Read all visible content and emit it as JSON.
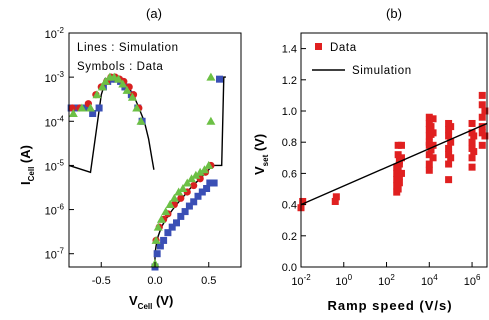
{
  "chart_data": [
    {
      "panel": "(a)",
      "type": "scatter",
      "y_scale": "log",
      "xlim": [
        -0.8,
        0.8
      ],
      "ylim": [
        5e-08,
        0.01
      ],
      "x_ticks": [
        -0.5,
        0.0,
        0.5
      ],
      "x_tick_labels": [
        "-0.5",
        "0.0",
        "0.5"
      ],
      "y_ticks": [
        1e-07,
        1e-06,
        1e-05,
        0.0001,
        0.001,
        0.01
      ],
      "y_tick_labels": [
        {
          "base": "10",
          "exp": "-7"
        },
        {
          "base": "10",
          "exp": "-6"
        },
        {
          "base": "10",
          "exp": "-5"
        },
        {
          "base": "10",
          "exp": "-4"
        },
        {
          "base": "10",
          "exp": "-3"
        },
        {
          "base": "10",
          "exp": "-2"
        }
      ],
      "xlabel": {
        "main": "V",
        "sub": "Cell",
        "unit": " (V)"
      },
      "ylabel": {
        "main": "I",
        "sub": "Cell",
        "unit": " (A)"
      },
      "annotations": [
        "Lines : Simulation",
        "Symbols : Data"
      ],
      "grid": false,
      "series": [
        {
          "style": "line",
          "x": [
            -0.8,
            -0.6,
            -0.5,
            -0.46,
            -0.42,
            -0.38,
            -0.35,
            -0.3,
            -0.25,
            -0.2,
            -0.15,
            -0.1,
            -0.06,
            -0.03,
            -0.01
          ],
          "y": [
            1e-05,
            7e-06,
            0.0004,
            0.0008,
            0.001,
            0.001,
            0.0009,
            0.0008,
            0.0006,
            0.0004,
            0.0002,
            0.0001,
            4e-05,
            1.5e-05,
            8e-06
          ]
        },
        {
          "style": "line",
          "x": [
            0.0,
            0.0,
            0.01,
            0.03,
            0.06,
            0.1,
            0.15,
            0.2,
            0.25,
            0.3,
            0.35,
            0.4,
            0.45,
            0.5,
            0.53
          ],
          "y": [
            6e-08,
            1e-07,
            1.5e-07,
            2.5e-07,
            4e-07,
            6e-07,
            9e-07,
            1.3e-06,
            1.8e-06,
            2.5e-06,
            3.5e-06,
            4.5e-06,
            6e-06,
            8e-06,
            1e-05
          ]
        },
        {
          "style": "line",
          "x": [
            0.53,
            0.62,
            0.64,
            0.66
          ],
          "y": [
            1e-05,
            1e-05,
            0.001,
            0.001
          ]
        },
        {
          "marker": "square",
          "color": "#3a4fb5",
          "x": [
            -0.78,
            -0.72,
            -0.64,
            -0.58,
            -0.52,
            -0.48,
            -0.44,
            -0.4,
            -0.36,
            -0.32,
            -0.28,
            -0.22,
            -0.16,
            -0.12,
            0.0,
            0.02,
            0.05,
            0.08,
            0.12,
            0.16,
            0.2,
            0.24,
            0.28,
            0.32,
            0.36,
            0.4,
            0.44,
            0.48,
            0.51,
            0.55,
            0.6
          ],
          "y": [
            0.0002,
            0.0002,
            0.0002,
            0.00015,
            0.0002,
            0.0006,
            0.0008,
            0.0009,
            0.0009,
            0.0008,
            0.0006,
            0.0004,
            0.0002,
            0.0001,
            5e-08,
            1e-07,
            1.5e-07,
            2e-07,
            3e-07,
            4e-07,
            5e-07,
            7e-07,
            9e-07,
            1.2e-06,
            1.5e-06,
            2e-06,
            2.5e-06,
            3e-06,
            4e-06,
            4e-06,
            0.0009
          ]
        },
        {
          "marker": "circle",
          "color": "#d82020",
          "x": [
            -0.77,
            -0.7,
            -0.62,
            -0.55,
            -0.5,
            -0.45,
            -0.41,
            -0.37,
            -0.33,
            -0.29,
            -0.24,
            -0.2,
            -0.15,
            0.01,
            0.04,
            0.08,
            0.12,
            0.18,
            0.24,
            0.3,
            0.36,
            0.42,
            0.47,
            0.52
          ],
          "y": [
            0.0002,
            0.0002,
            0.00025,
            0.0004,
            0.0006,
            0.0008,
            0.001,
            0.001,
            0.0009,
            0.0008,
            0.0006,
            0.0004,
            0.0002,
            2e-07,
            4e-07,
            6e-07,
            8e-07,
            1.3e-06,
            1.8e-06,
            2.5e-06,
            3.5e-06,
            5e-06,
            7e-06,
            1e-05
          ]
        },
        {
          "marker": "triangle",
          "color": "#6cc045",
          "x": [
            -0.76,
            -0.68,
            -0.6,
            -0.54,
            -0.49,
            -0.46,
            -0.42,
            -0.38,
            -0.34,
            -0.3,
            -0.26,
            -0.21,
            -0.17,
            -0.13,
            0.0,
            0.01,
            0.03,
            0.06,
            0.1,
            0.14,
            0.18,
            0.22,
            0.26,
            0.3,
            0.34,
            0.38,
            0.42,
            0.46,
            0.5,
            0.52,
            0.52
          ],
          "y": [
            0.00015,
            0.0002,
            0.0002,
            0.0004,
            0.0006,
            0.0008,
            0.001,
            0.001,
            0.0009,
            0.0007,
            0.0005,
            0.00035,
            0.0002,
            0.0001,
            6e-08,
            2e-07,
            4e-07,
            6e-07,
            9e-07,
            1.3e-06,
            1.8e-06,
            2.5e-06,
            3e-06,
            4e-06,
            5e-06,
            6e-06,
            7e-06,
            8e-06,
            1e-05,
            0.001,
            0.0001
          ]
        }
      ]
    },
    {
      "panel": "(b)",
      "type": "scatter",
      "x_scale": "log",
      "xlim": [
        0.01,
        5000000.0
      ],
      "ylim": [
        0.0,
        1.5
      ],
      "x_ticks": [
        0.01,
        1,
        100,
        10000,
        1000000
      ],
      "x_tick_labels": [
        {
          "base": "10",
          "exp": "-2"
        },
        {
          "base": "10",
          "exp": "0"
        },
        {
          "base": "10",
          "exp": "2"
        },
        {
          "base": "10",
          "exp": "4"
        },
        {
          "base": "10",
          "exp": "6"
        }
      ],
      "y_ticks": [
        0.0,
        0.2,
        0.4,
        0.6,
        0.8,
        1.0,
        1.2,
        1.4
      ],
      "y_tick_labels": [
        "0.0",
        "0.2",
        "0.4",
        "0.6",
        "0.8",
        "1.0",
        "1.2",
        "1.4"
      ],
      "xlabel": "Ramp   speed (V/s)",
      "ylabel": {
        "main": "V",
        "sub": "set",
        "unit": " (V)"
      },
      "legend": {
        "position": "top-left",
        "entries": [
          {
            "label": "Data",
            "marker": "square",
            "color": "#e02020"
          },
          {
            "label": "Simulation",
            "marker": "line",
            "color": "#000000"
          }
        ]
      },
      "grid": false,
      "series": [
        {
          "name": "Data",
          "marker": "square",
          "color": "#e02020",
          "x": [
            0.01,
            0.012,
            0.4,
            0.45,
            300,
            300,
            300,
            300,
            300,
            350,
            350,
            350,
            350,
            400,
            400,
            400,
            400,
            500,
            500,
            500,
            10000,
            10000,
            10000,
            10000,
            10000,
            10000,
            10000,
            10000,
            10000,
            12000,
            12000,
            12000,
            15000,
            15000,
            15000,
            15000,
            80000,
            80000,
            80000,
            80000,
            80000,
            80000,
            80000,
            100000,
            100000,
            100000,
            1000000,
            1000000,
            1000000,
            1000000,
            1000000,
            1000000,
            1200000,
            1200000,
            3000000,
            3000000,
            3000000,
            3000000,
            3000000,
            3000000,
            4000000,
            4000000
          ],
          "y": [
            0.38,
            0.42,
            0.42,
            0.45,
            0.48,
            0.52,
            0.56,
            0.6,
            0.64,
            0.5,
            0.62,
            0.72,
            0.78,
            0.54,
            0.58,
            0.66,
            0.68,
            0.6,
            0.7,
            0.78,
            0.62,
            0.66,
            0.72,
            0.78,
            0.8,
            0.84,
            0.88,
            0.92,
            0.96,
            0.75,
            0.85,
            0.9,
            0.7,
            0.78,
            0.86,
            0.95,
            0.56,
            0.66,
            0.72,
            0.76,
            0.84,
            0.88,
            0.92,
            0.7,
            0.8,
            0.9,
            0.64,
            0.7,
            0.76,
            0.8,
            0.86,
            0.92,
            0.74,
            0.84,
            0.78,
            0.86,
            0.9,
            0.96,
            1.04,
            1.1,
            0.84,
            1.0
          ]
        },
        {
          "name": "Simulation",
          "style": "line",
          "x": [
            0.01,
            5000000
          ],
          "y": [
            0.4,
            0.92
          ]
        }
      ]
    }
  ]
}
